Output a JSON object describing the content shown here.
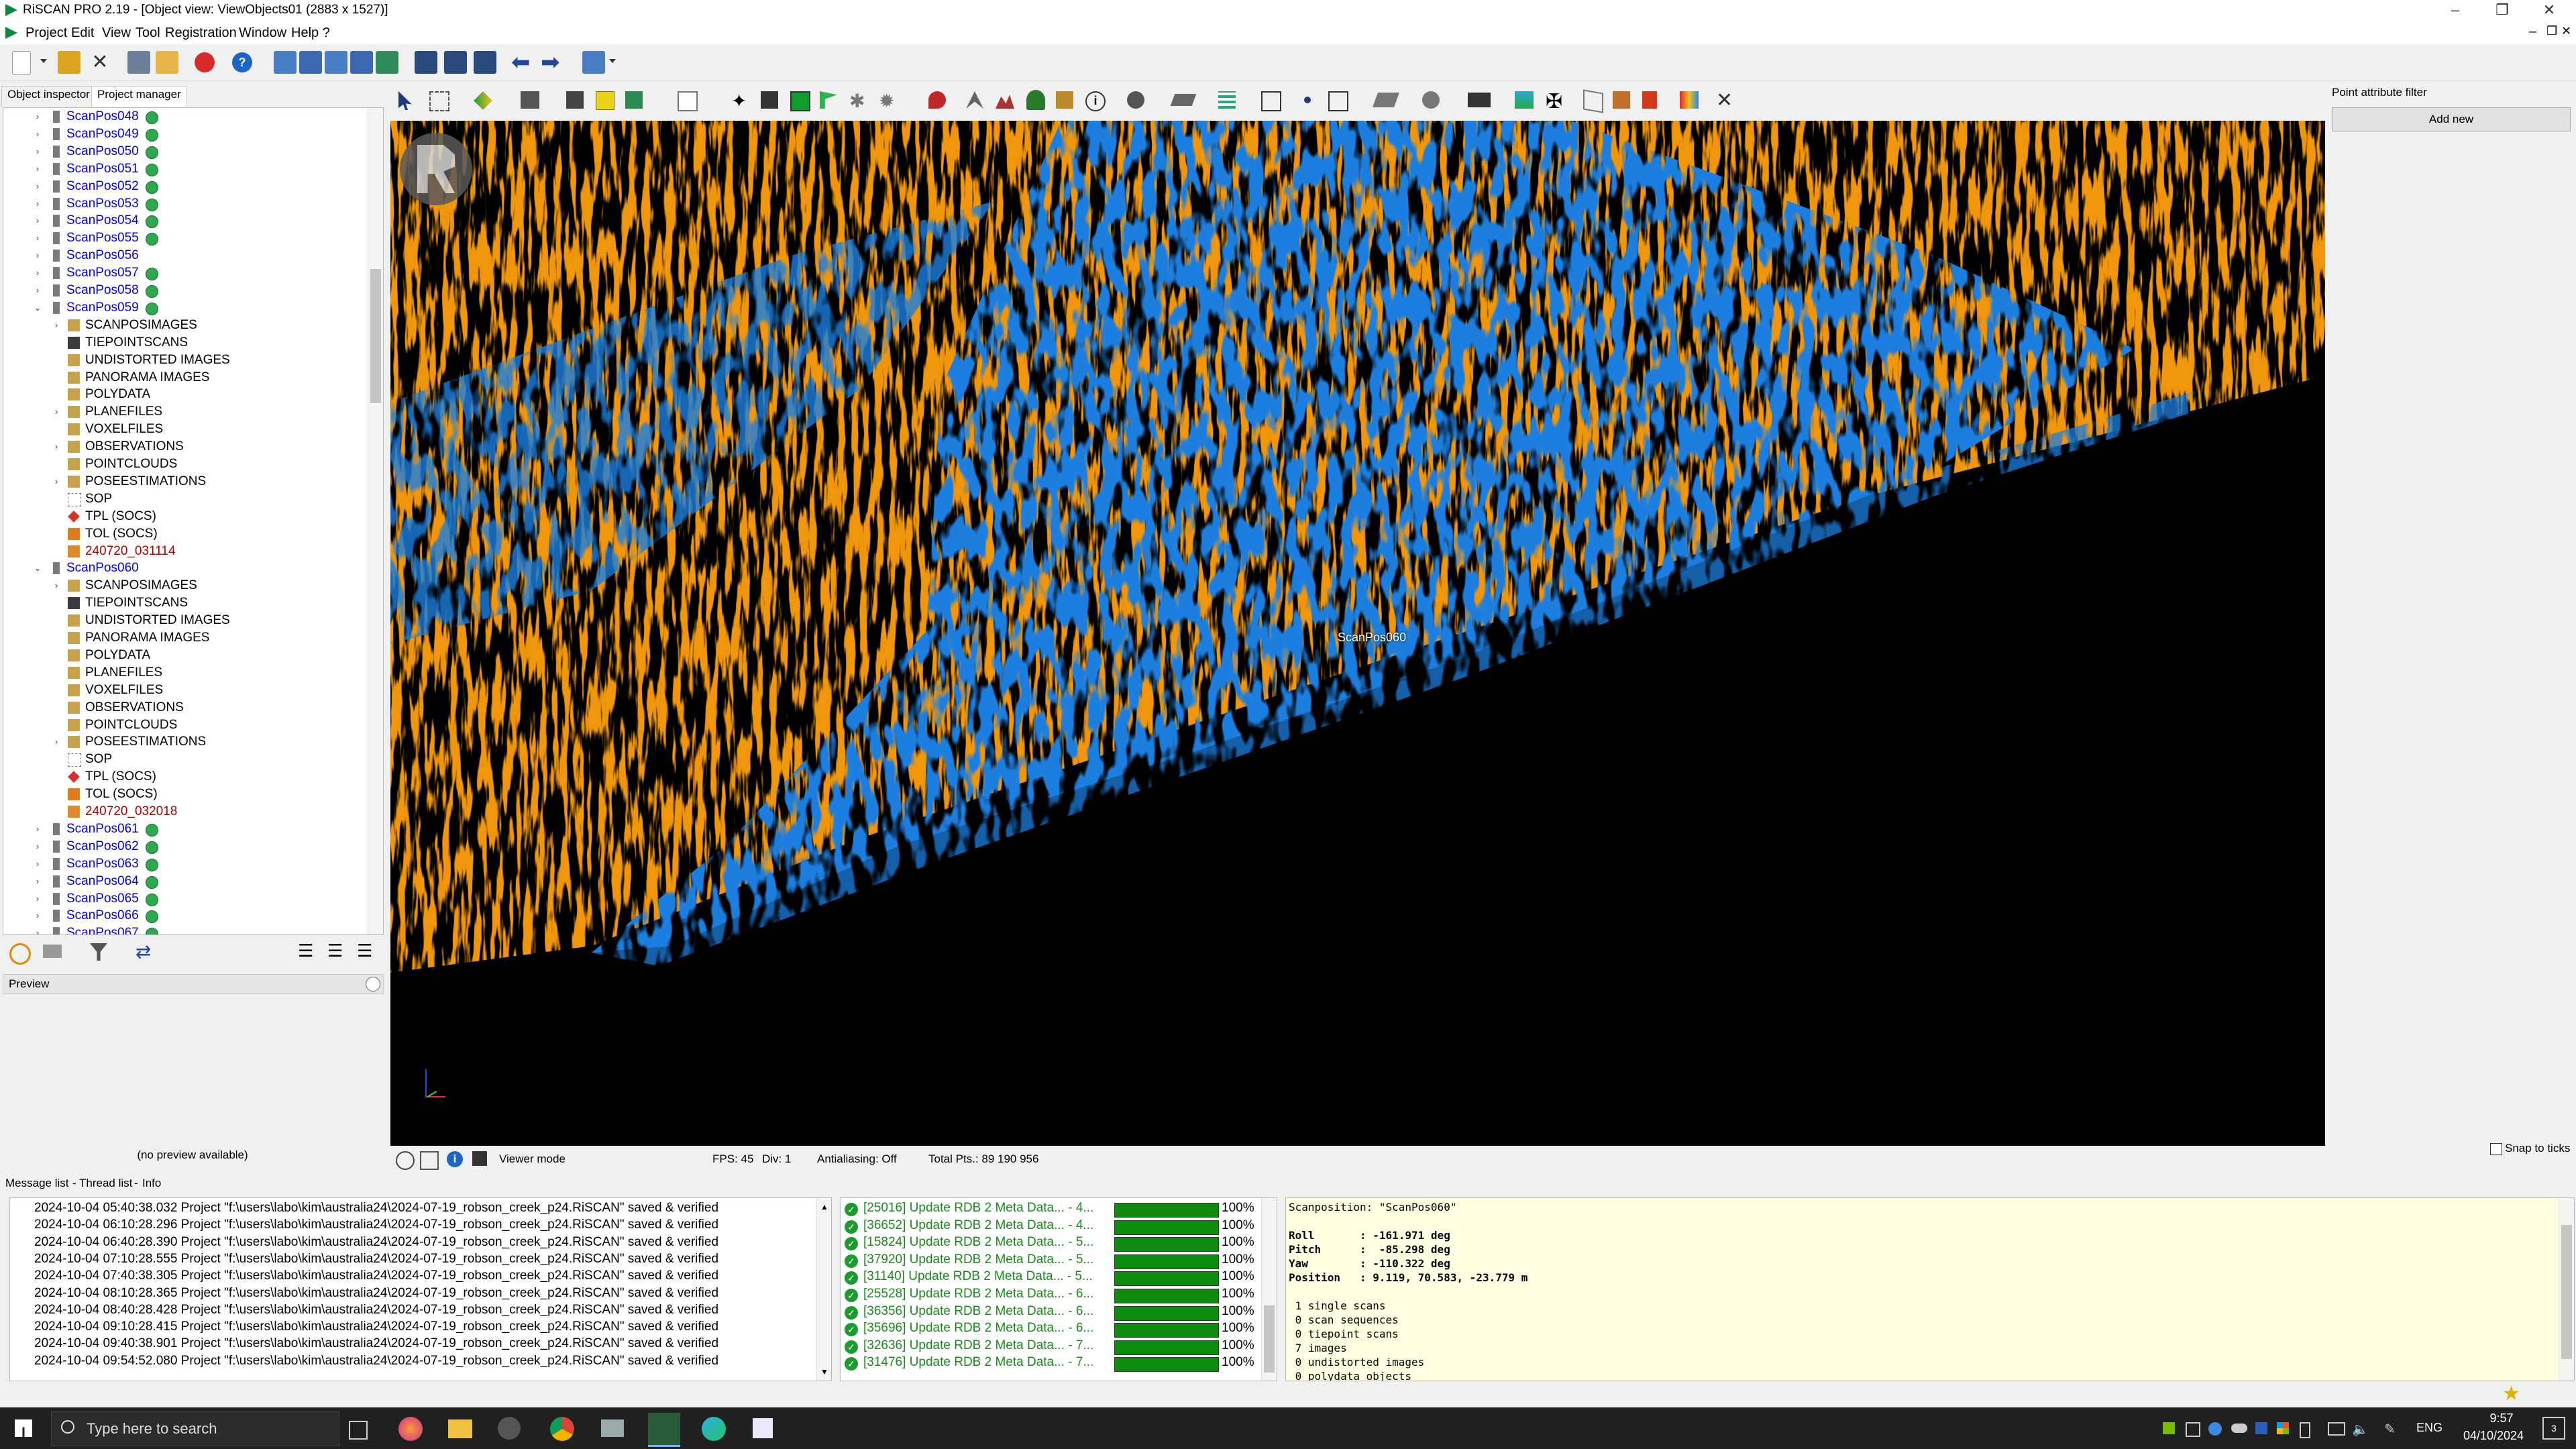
{
  "window": {
    "title": "RiSCAN PRO 2.19 - [Object view: ViewObjects01 (2883 x 1527)]"
  },
  "menu": [
    "Project",
    "Edit",
    "View",
    "Tool",
    "Registration",
    "Window",
    "Help ?"
  ],
  "left_tabs": {
    "object_inspector": "Object inspector",
    "project_manager": "Project manager"
  },
  "tree": [
    {
      "label": "ScanPos048",
      "level": 0,
      "type": "scan",
      "badge": true,
      "expand": "+"
    },
    {
      "label": "ScanPos049",
      "level": 0,
      "type": "scan",
      "badge": true,
      "expand": "+"
    },
    {
      "label": "ScanPos050",
      "level": 0,
      "type": "scan",
      "badge": true,
      "expand": "+"
    },
    {
      "label": "ScanPos051",
      "level": 0,
      "type": "scan",
      "badge": true,
      "expand": "+"
    },
    {
      "label": "ScanPos052",
      "level": 0,
      "type": "scan",
      "badge": true,
      "expand": "+"
    },
    {
      "label": "ScanPos053",
      "level": 0,
      "type": "scan",
      "badge": true,
      "expand": "+"
    },
    {
      "label": "ScanPos054",
      "level": 0,
      "type": "scan",
      "badge": true,
      "expand": "+"
    },
    {
      "label": "ScanPos055",
      "level": 0,
      "type": "scan",
      "badge": true,
      "expand": "+"
    },
    {
      "label": "ScanPos056",
      "level": 0,
      "type": "scan",
      "badge": false,
      "expand": "+"
    },
    {
      "label": "ScanPos057",
      "level": 0,
      "type": "scan",
      "badge": true,
      "expand": "+"
    },
    {
      "label": "ScanPos058",
      "level": 0,
      "type": "scan",
      "badge": true,
      "expand": "+"
    },
    {
      "label": "ScanPos059",
      "level": 0,
      "type": "scan",
      "badge": true,
      "expand": "-"
    },
    {
      "label": "SCANPOSIMAGES",
      "level": 1,
      "type": "folder",
      "expand": "+"
    },
    {
      "label": "TIEPOINTSCANS",
      "level": 1,
      "type": "tiepoint",
      "expand": ""
    },
    {
      "label": "UNDISTORTED IMAGES",
      "level": 1,
      "type": "folder",
      "expand": ""
    },
    {
      "label": "PANORAMA IMAGES",
      "level": 1,
      "type": "folder",
      "expand": ""
    },
    {
      "label": "POLYDATA",
      "level": 1,
      "type": "folder",
      "expand": ""
    },
    {
      "label": "PLANEFILES",
      "level": 1,
      "type": "folder",
      "expand": "+"
    },
    {
      "label": "VOXELFILES",
      "level": 1,
      "type": "folder",
      "expand": ""
    },
    {
      "label": "OBSERVATIONS",
      "level": 1,
      "type": "folder",
      "expand": "+"
    },
    {
      "label": "POINTCLOUDS",
      "level": 1,
      "type": "folder",
      "expand": ""
    },
    {
      "label": "POSEESTIMATIONS",
      "level": 1,
      "type": "folder",
      "expand": "+"
    },
    {
      "label": "SOP",
      "level": 1,
      "type": "sop",
      "expand": ""
    },
    {
      "label": "TPL (SOCS)",
      "level": 1,
      "type": "tpl",
      "expand": ""
    },
    {
      "label": "TOL (SOCS)",
      "level": 1,
      "type": "tol",
      "expand": ""
    },
    {
      "label": "240720_031114",
      "level": 1,
      "type": "data",
      "expand": ""
    },
    {
      "label": "ScanPos060",
      "level": 0,
      "type": "scan",
      "badge": false,
      "expand": "-"
    },
    {
      "label": "SCANPOSIMAGES",
      "level": 1,
      "type": "folder",
      "expand": "+"
    },
    {
      "label": "TIEPOINTSCANS",
      "level": 1,
      "type": "tiepoint",
      "expand": ""
    },
    {
      "label": "UNDISTORTED IMAGES",
      "level": 1,
      "type": "folder",
      "expand": ""
    },
    {
      "label": "PANORAMA IMAGES",
      "level": 1,
      "type": "folder",
      "expand": ""
    },
    {
      "label": "POLYDATA",
      "level": 1,
      "type": "folder",
      "expand": ""
    },
    {
      "label": "PLANEFILES",
      "level": 1,
      "type": "folder",
      "expand": ""
    },
    {
      "label": "VOXELFILES",
      "level": 1,
      "type": "folder",
      "expand": ""
    },
    {
      "label": "OBSERVATIONS",
      "level": 1,
      "type": "folder",
      "expand": ""
    },
    {
      "label": "POINTCLOUDS",
      "level": 1,
      "type": "folder",
      "expand": ""
    },
    {
      "label": "POSEESTIMATIONS",
      "level": 1,
      "type": "folder",
      "expand": "+"
    },
    {
      "label": "SOP",
      "level": 1,
      "type": "sop",
      "expand": ""
    },
    {
      "label": "TPL (SOCS)",
      "level": 1,
      "type": "tpl",
      "expand": ""
    },
    {
      "label": "TOL (SOCS)",
      "level": 1,
      "type": "tol",
      "expand": ""
    },
    {
      "label": "240720_032018",
      "level": 1,
      "type": "data",
      "expand": ""
    },
    {
      "label": "ScanPos061",
      "level": 0,
      "type": "scan",
      "badge": true,
      "expand": "+"
    },
    {
      "label": "ScanPos062",
      "level": 0,
      "type": "scan",
      "badge": true,
      "expand": "+"
    },
    {
      "label": "ScanPos063",
      "level": 0,
      "type": "scan",
      "badge": true,
      "expand": "+"
    },
    {
      "label": "ScanPos064",
      "level": 0,
      "type": "scan",
      "badge": true,
      "expand": "+"
    },
    {
      "label": "ScanPos065",
      "level": 0,
      "type": "scan",
      "badge": true,
      "expand": "+"
    },
    {
      "label": "ScanPos066",
      "level": 0,
      "type": "scan",
      "badge": true,
      "expand": "+"
    },
    {
      "label": "ScanPos067",
      "level": 0,
      "type": "scan",
      "badge": true,
      "expand": "+"
    }
  ],
  "preview": {
    "title": "Preview",
    "empty": "(no preview available)"
  },
  "viewer": {
    "scan_label": "ScanPos060",
    "colors": {
      "blue": "#1f7fe0",
      "orange": "#f0960f",
      "background": "#000000"
    }
  },
  "viewer_status": {
    "mode": "Viewer mode",
    "fps": "FPS: 45",
    "div": "Div: 1",
    "antialiasing": "Antialiasing: Off",
    "total_pts": "Total Pts.: 89 190 956"
  },
  "right_panel": {
    "title": "Point attribute filter",
    "add_new": "Add new",
    "snap": "Snap to ticks"
  },
  "bottom_tabs": [
    "Message list",
    "Thread list",
    "Info"
  ],
  "messages": [
    "2024-10-04 05:40:38.032 Project \"f:\\users\\labo\\kim\\australia24\\2024-07-19_robson_creek_p24.RiSCAN\" saved & verified",
    "2024-10-04 06:10:28.296 Project \"f:\\users\\labo\\kim\\australia24\\2024-07-19_robson_creek_p24.RiSCAN\" saved & verified",
    "2024-10-04 06:40:28.390 Project \"f:\\users\\labo\\kim\\australia24\\2024-07-19_robson_creek_p24.RiSCAN\" saved & verified",
    "2024-10-04 07:10:28.555 Project \"f:\\users\\labo\\kim\\australia24\\2024-07-19_robson_creek_p24.RiSCAN\" saved & verified",
    "2024-10-04 07:40:38.305 Project \"f:\\users\\labo\\kim\\australia24\\2024-07-19_robson_creek_p24.RiSCAN\" saved & verified",
    "2024-10-04 08:10:28.365 Project \"f:\\users\\labo\\kim\\australia24\\2024-07-19_robson_creek_p24.RiSCAN\" saved & verified",
    "2024-10-04 08:40:28.428 Project \"f:\\users\\labo\\kim\\australia24\\2024-07-19_robson_creek_p24.RiSCAN\" saved & verified",
    "2024-10-04 09:10:28.415 Project \"f:\\users\\labo\\kim\\australia24\\2024-07-19_robson_creek_p24.RiSCAN\" saved & verified",
    "2024-10-04 09:40:38.901 Project \"f:\\users\\labo\\kim\\australia24\\2024-07-19_robson_creek_p24.RiSCAN\" saved & verified",
    "2024-10-04 09:54:52.080 Project \"f:\\users\\labo\\kim\\australia24\\2024-07-19_robson_creek_p24.RiSCAN\" saved & verified"
  ],
  "threads": [
    {
      "label": "[25016] Update RDB 2 Meta Data... - 4...",
      "progress": 1.0,
      "pct": "100%"
    },
    {
      "label": "[36652] Update RDB 2 Meta Data... - 4...",
      "progress": 1.0,
      "pct": "100%"
    },
    {
      "label": "[15824] Update RDB 2 Meta Data... - 5...",
      "progress": 1.0,
      "pct": "100%"
    },
    {
      "label": "[37920] Update RDB 2 Meta Data... - 5...",
      "progress": 1.0,
      "pct": "100%"
    },
    {
      "label": "[31140] Update RDB 2 Meta Data... - 5...",
      "progress": 1.0,
      "pct": "100%"
    },
    {
      "label": "[25528] Update RDB 2 Meta Data... - 6...",
      "progress": 1.0,
      "pct": "100%"
    },
    {
      "label": "[36356] Update RDB 2 Meta Data... - 6...",
      "progress": 1.0,
      "pct": "100%"
    },
    {
      "label": "[35696] Update RDB 2 Meta Data... - 6...",
      "progress": 1.0,
      "pct": "100%"
    },
    {
      "label": "[32636] Update RDB 2 Meta Data... - 7...",
      "progress": 1.0,
      "pct": "100%"
    },
    {
      "label": "[31476] Update RDB 2 Meta Data... - 7...",
      "progress": 1.0,
      "pct": "100%"
    }
  ],
  "info": [
    "Scanposition: \"ScanPos060\"",
    "",
    "Roll       : -161.971 deg",
    "Pitch      :  -85.298 deg",
    "Yaw        : -110.322 deg",
    "Position   : 9.119, 70.583, -23.779 m",
    "",
    " 1 single scans",
    " 0 scan sequences",
    " 0 tiepoint scans",
    " 7 images",
    " 0 undistorted images",
    " 0 polydata objects"
  ],
  "taskbar": {
    "search_placeholder": "Type here to search",
    "time": "9:57",
    "date": "04/10/2024",
    "lang": "ENG",
    "notifications": "3"
  }
}
